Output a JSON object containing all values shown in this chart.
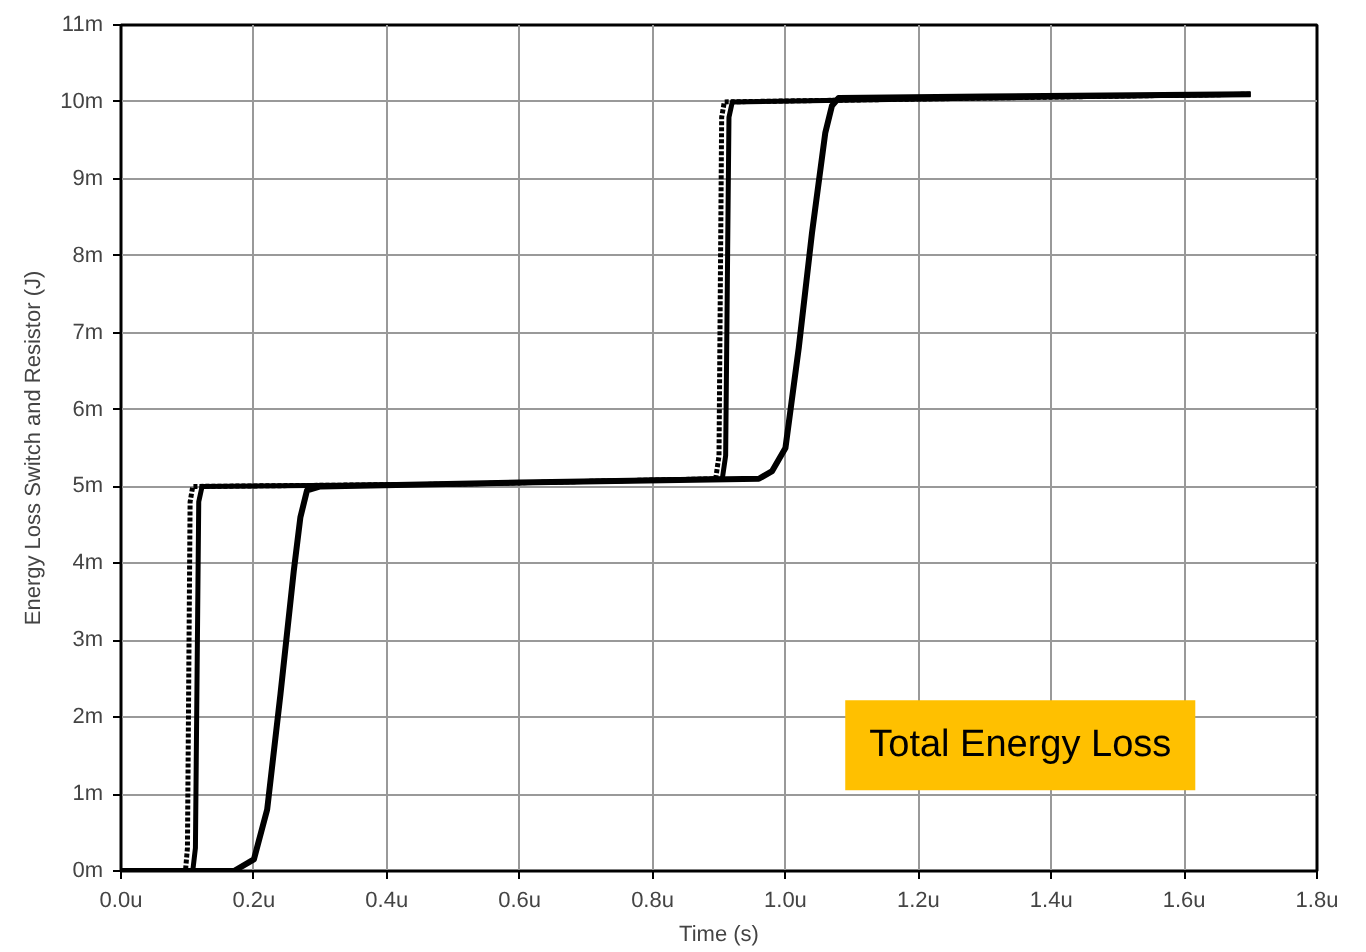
{
  "chart_data": {
    "type": "line",
    "xlabel": "Time (s)",
    "ylabel": "Energy Loss Switch and Resistor (J)",
    "xlim": [
      0,
      1.8
    ],
    "ylim": [
      0,
      11
    ],
    "xticks": [
      {
        "value": 0,
        "label": "0.0u"
      },
      {
        "value": 0.2,
        "label": "0.2u"
      },
      {
        "value": 0.4,
        "label": "0.4u"
      },
      {
        "value": 0.6,
        "label": "0.6u"
      },
      {
        "value": 0.8,
        "label": "0.8u"
      },
      {
        "value": 1.0,
        "label": "1.0u"
      },
      {
        "value": 1.2,
        "label": "1.2u"
      },
      {
        "value": 1.4,
        "label": "1.4u"
      },
      {
        "value": 1.6,
        "label": "1.6u"
      },
      {
        "value": 1.8,
        "label": "1.8u"
      }
    ],
    "yticks": [
      {
        "value": 0,
        "label": "0m"
      },
      {
        "value": 1,
        "label": "1m"
      },
      {
        "value": 2,
        "label": "2m"
      },
      {
        "value": 3,
        "label": "3m"
      },
      {
        "value": 4,
        "label": "4m"
      },
      {
        "value": 5,
        "label": "5m"
      },
      {
        "value": 6,
        "label": "6m"
      },
      {
        "value": 7,
        "label": "7m"
      },
      {
        "value": 8,
        "label": "8m"
      },
      {
        "value": 9,
        "label": "9m"
      },
      {
        "value": 10,
        "label": "10m"
      },
      {
        "value": 11,
        "label": "11m"
      }
    ],
    "grid": true,
    "annotations": [
      "Total Energy Loss"
    ],
    "series": [
      {
        "color": "#000000",
        "line_style": "dotted",
        "x": [
          0,
          0.097,
          0.1,
          0.104,
          0.108,
          0.5,
          0.895,
          0.9,
          0.904,
          0.908,
          1.3,
          1.7
        ],
        "values": [
          0,
          0,
          0.3,
          4.8,
          5.0,
          5.03,
          5.1,
          5.4,
          9.8,
          10.0,
          10.05,
          10.1
        ]
      },
      {
        "color": "#000000",
        "line_style": "solid",
        "x": [
          0,
          0.108,
          0.112,
          0.117,
          0.122,
          0.5,
          0.905,
          0.91,
          0.915,
          0.92,
          1.3,
          1.7
        ],
        "values": [
          0,
          0,
          0.3,
          4.8,
          5.0,
          5.03,
          5.1,
          5.4,
          9.8,
          10.0,
          10.05,
          10.1
        ]
      },
      {
        "color": "#000000",
        "line_style": "solid",
        "x": [
          0,
          0.17,
          0.2,
          0.22,
          0.24,
          0.26,
          0.27,
          0.28,
          0.3,
          0.6,
          0.96,
          0.98,
          1.0,
          1.02,
          1.04,
          1.06,
          1.07,
          1.08,
          1.3,
          1.7
        ],
        "values": [
          0,
          0,
          0.15,
          0.8,
          2.3,
          3.9,
          4.6,
          4.95,
          5.0,
          5.05,
          5.1,
          5.2,
          5.5,
          6.8,
          8.3,
          9.6,
          9.95,
          10.05,
          10.07,
          10.1
        ]
      }
    ]
  }
}
